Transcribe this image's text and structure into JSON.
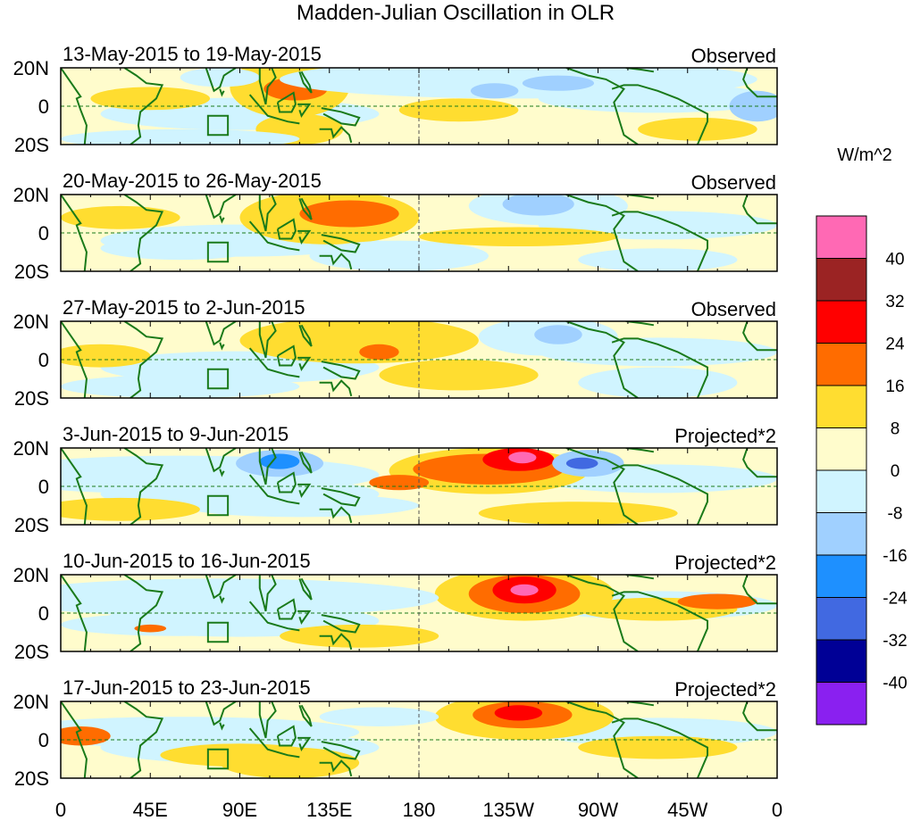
{
  "chart_data": {
    "type": "heatmap",
    "title": "Madden-Julian Oscillation in OLR",
    "units_label": "W/m^2",
    "xlim": [
      0,
      360
    ],
    "ylim": [
      -20,
      20
    ],
    "x_tick_labels": [
      "0",
      "45E",
      "90E",
      "135E",
      "180",
      "135W",
      "90W",
      "45W",
      "0"
    ],
    "y_tick_labels": [
      "20N",
      "0",
      "20S"
    ],
    "colorbar": {
      "levels": [
        "40",
        "32",
        "24",
        "16",
        "8",
        "0",
        "-8",
        "-16",
        "-24",
        "-32",
        "-40"
      ],
      "colors": [
        "#ff69b4",
        "#9b2323",
        "#ff0000",
        "#ff6c00",
        "#ffdd30",
        "#fffccc",
        "#d0f4ff",
        "#a0d0ff",
        "#1e90ff",
        "#4169e1",
        "#000096",
        "#8a20f0"
      ]
    },
    "panels": [
      {
        "date_range": "13-May-2015 to 19-May-2015",
        "label": "Observed",
        "blobs": [
          [
            115,
            10,
            30,
            16,
            8
          ],
          [
            118,
            9,
            16,
            6,
            16
          ],
          [
            120,
            -12,
            22,
            8,
            8
          ],
          [
            45,
            4,
            30,
            6,
            8
          ],
          [
            230,
            14,
            120,
            10,
            -8
          ],
          [
            218,
            8,
            12,
            4,
            -16
          ],
          [
            250,
            12,
            18,
            4,
            -16
          ],
          [
            350,
            0,
            14,
            8,
            -16
          ],
          [
            200,
            -2,
            30,
            6,
            8
          ],
          [
            60,
            -17,
            60,
            5,
            -8
          ],
          [
            80,
            15,
            20,
            5,
            -8
          ],
          [
            320,
            -12,
            30,
            6,
            8
          ]
        ]
      },
      {
        "date_range": "20-May-2015 to 26-May-2015",
        "label": "Observed",
        "blobs": [
          [
            135,
            8,
            45,
            14,
            8
          ],
          [
            145,
            10,
            25,
            7,
            16
          ],
          [
            245,
            14,
            40,
            10,
            -8
          ],
          [
            240,
            15,
            18,
            6,
            -16
          ],
          [
            170,
            -12,
            45,
            8,
            -8
          ],
          [
            60,
            -8,
            40,
            6,
            -8
          ],
          [
            300,
            -14,
            40,
            6,
            -8
          ],
          [
            230,
            -2,
            50,
            5,
            8
          ],
          [
            30,
            8,
            30,
            6,
            8
          ]
        ]
      },
      {
        "date_range": "27-May-2015 to 2-Jun-2015",
        "label": "Observed",
        "blobs": [
          [
            150,
            10,
            60,
            12,
            8
          ],
          [
            160,
            4,
            10,
            4,
            16
          ],
          [
            245,
            12,
            35,
            10,
            -8
          ],
          [
            250,
            13,
            12,
            5,
            -16
          ],
          [
            60,
            -14,
            60,
            6,
            -8
          ],
          [
            300,
            -12,
            40,
            8,
            -8
          ],
          [
            200,
            -8,
            40,
            8,
            8
          ],
          [
            20,
            2,
            25,
            6,
            8
          ]
        ]
      },
      {
        "date_range": "3-Jun-2015 to 9-Jun-2015",
        "label": "Projected*2",
        "blobs": [
          [
            60,
            6,
            100,
            10,
            -8
          ],
          [
            110,
            12,
            22,
            7,
            -16
          ],
          [
            110,
            13,
            10,
            4,
            -24
          ],
          [
            215,
            8,
            50,
            12,
            8
          ],
          [
            215,
            9,
            38,
            8,
            16
          ],
          [
            230,
            14,
            18,
            6,
            24
          ],
          [
            232,
            15,
            7,
            3,
            40
          ],
          [
            265,
            12,
            18,
            7,
            -16
          ],
          [
            262,
            12,
            8,
            3,
            -28
          ],
          [
            170,
            2,
            15,
            4,
            16
          ],
          [
            260,
            -14,
            50,
            6,
            8
          ],
          [
            120,
            -10,
            60,
            6,
            -8
          ],
          [
            30,
            -12,
            40,
            6,
            8
          ]
        ]
      },
      {
        "date_range": "10-Jun-2015 to 16-Jun-2015",
        "label": "Projected*2",
        "blobs": [
          [
            233,
            10,
            45,
            14,
            8
          ],
          [
            233,
            10,
            28,
            10,
            16
          ],
          [
            233,
            12,
            16,
            7,
            24
          ],
          [
            233,
            12,
            7,
            3,
            40
          ],
          [
            80,
            8,
            110,
            10,
            -8
          ],
          [
            60,
            -6,
            60,
            6,
            -8
          ],
          [
            45,
            -8,
            8,
            2,
            16
          ],
          [
            300,
            2,
            40,
            6,
            8
          ],
          [
            330,
            6,
            20,
            4,
            16
          ],
          [
            150,
            -12,
            40,
            6,
            8
          ]
        ]
      },
      {
        "date_range": "17-Jun-2015 to 23-Jun-2015",
        "label": "Projected*2",
        "blobs": [
          [
            233,
            12,
            45,
            12,
            8
          ],
          [
            232,
            13,
            25,
            7,
            16
          ],
          [
            230,
            14,
            12,
            4,
            24
          ],
          [
            115,
            -12,
            35,
            8,
            8
          ],
          [
            60,
            4,
            90,
            8,
            -8
          ],
          [
            90,
            -8,
            40,
            6,
            8
          ],
          [
            300,
            -4,
            40,
            6,
            8
          ],
          [
            10,
            2,
            15,
            5,
            16
          ],
          [
            160,
            12,
            30,
            5,
            -8
          ]
        ]
      }
    ]
  }
}
